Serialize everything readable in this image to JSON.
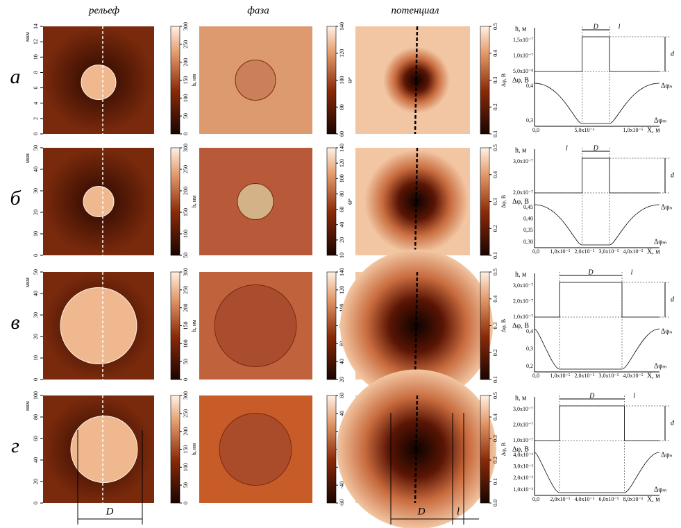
{
  "columns": [
    "рельеф",
    "фаза",
    "потенциал"
  ],
  "rows": [
    {
      "label": "а",
      "unit": "мкм",
      "yticks": [
        "0",
        "2",
        "4",
        "6",
        "8",
        "10",
        "12",
        "14"
      ],
      "relief_bar": {
        "label": "h, нм",
        "ticks": [
          "0",
          "50",
          "100",
          "150",
          "200",
          "250",
          "300"
        ]
      },
      "phase_bar": {
        "label": "Θ°",
        "ticks": [
          "60",
          "80",
          "100",
          "120",
          "140"
        ]
      },
      "potential_bar": {
        "label": "Δφ, В",
        "ticks": [
          "0.1",
          "0.2",
          "0.3",
          "0.4",
          "0.5"
        ]
      },
      "profile": {
        "h_label": "h, м",
        "h_ticks": [
          "5,0x10⁻⁸",
          "1,0x10⁻⁷",
          "1,5x10⁻⁷"
        ],
        "phi_label": "Δφ, В",
        "phi_ticks": [
          "0,3",
          "0,4"
        ],
        "x_label": "X, м",
        "x_ticks": [
          "0,0",
          "5,0x10⁻⁶",
          "1,0x10⁻⁵"
        ],
        "D": "D",
        "l": "l",
        "d": "d",
        "phi_n": "Δφₙ",
        "phi_m": "Δφₘ"
      }
    },
    {
      "label": "б",
      "unit": "мкм",
      "yticks": [
        "0",
        "10",
        "20",
        "30",
        "40",
        "50"
      ],
      "relief_bar": {
        "label": "h, нм",
        "ticks": [
          "50",
          "100",
          "150",
          "200",
          "250",
          "300"
        ]
      },
      "phase_bar": {
        "label": "Θ°",
        "ticks": [
          "10",
          "20",
          "40",
          "60",
          "80",
          "100",
          "120",
          "140"
        ]
      },
      "potential_bar": {
        "label": "Δφ, В",
        "ticks": [
          "0.1",
          "0.2",
          "0.3",
          "0.4",
          "0.5"
        ]
      },
      "profile": {
        "h_label": "h, м",
        "h_ticks": [
          "2,0x10⁻⁷",
          "3,0x10⁻⁷"
        ],
        "phi_label": "Δφ, В",
        "phi_ticks": [
          "0,30",
          "0,35",
          "0,40",
          "0,45"
        ],
        "x_label": "X, м",
        "x_ticks": [
          "0,0",
          "1,0x10⁻⁵",
          "2,0x10⁻⁵",
          "3,0x10⁻⁵",
          "4,0x10⁻⁵"
        ],
        "D": "D",
        "l": "l",
        "d": "d",
        "phi_n": "Δφₙ",
        "phi_m": "Δφₘ"
      }
    },
    {
      "label": "в",
      "unit": "мкм",
      "yticks": [
        "0",
        "10",
        "20",
        "30",
        "40",
        "50"
      ],
      "relief_bar": {
        "label": "h, нм",
        "ticks": [
          "0",
          "50",
          "100",
          "150",
          "200",
          "250",
          "300"
        ]
      },
      "phase_bar": {
        "label": "Θ°",
        "ticks": [
          "20",
          "40",
          "60",
          "80",
          "100",
          "120",
          "140"
        ]
      },
      "potential_bar": {
        "label": "Δφ, В",
        "ticks": [
          "0.1",
          "0.2",
          "0.3",
          "0.4",
          "0.5"
        ]
      },
      "profile": {
        "h_label": "h, м",
        "h_ticks": [
          "1,0x10⁻⁷",
          "2,0x10⁻⁷",
          "3,0x10⁻⁷"
        ],
        "phi_label": "Δφ, В",
        "phi_ticks": [
          "0,2",
          "0,3",
          "0,4"
        ],
        "x_label": "X, м",
        "x_ticks": [
          "0,0",
          "1,0x10⁻⁵",
          "2,0x10⁻⁵",
          "3,0x10⁻⁵",
          "4,0x10⁻⁵"
        ],
        "D": "D",
        "l": "l",
        "d": "d",
        "phi_n": "Δφₙ",
        "phi_m": "Δφₘ"
      }
    },
    {
      "label": "г",
      "unit": "мкм",
      "yticks": [
        "0",
        "20",
        "40",
        "60",
        "80",
        "100"
      ],
      "relief_bar": {
        "label": "h, нм",
        "ticks": [
          "0",
          "50",
          "100",
          "150",
          "200",
          "250",
          "300"
        ]
      },
      "phase_bar": {
        "label": "Θ°",
        "ticks": [
          "-60",
          "-40",
          "-20",
          "0",
          "20",
          "40",
          "60"
        ]
      },
      "potential_bar": {
        "label": "Δφ, В",
        "ticks": [
          "0.0",
          "0.1",
          "0.2",
          "0.3",
          "0.4",
          "0.5"
        ]
      },
      "profile": {
        "h_label": "h, м",
        "h_ticks": [
          "1,0x10⁻⁷",
          "2,0x10⁻⁷",
          "3,0x10⁻⁷"
        ],
        "phi_label": "Δφ, В",
        "phi_ticks": [
          "1,0x10⁻¹",
          "2,0x10⁻¹",
          "3,0x10⁻¹",
          "4,0x10⁻¹"
        ],
        "x_label": "X, м",
        "x_ticks": [
          "0,0",
          "2,0x10⁻⁵",
          "4,0x10⁻⁵",
          "6,0x10⁻⁵",
          "8,0x10⁻⁵"
        ],
        "D": "D",
        "l": "l",
        "d": "d",
        "phi_n": "Δφₙ",
        "phi_m": "Δφₘ"
      }
    }
  ],
  "bottom_labels": {
    "relief_D": "D",
    "potential_D": "D",
    "potential_l": "l"
  }
}
